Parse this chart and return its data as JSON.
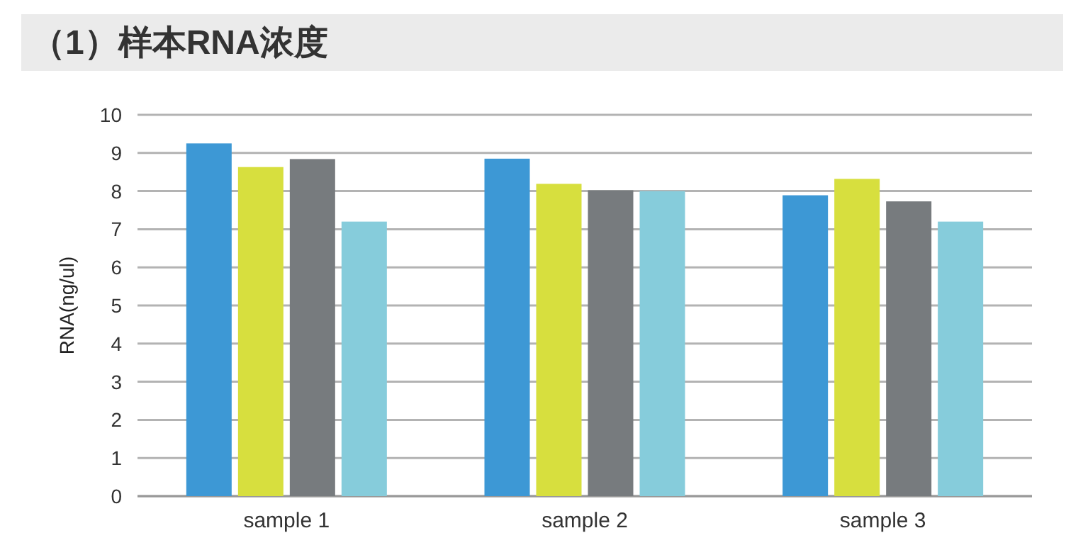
{
  "chart_data": {
    "type": "bar",
    "title": "（1）样本RNA浓度",
    "ylabel": "RNA(ng/ul)",
    "categories": [
      "sample 1",
      "sample 2",
      "sample 3"
    ],
    "series": [
      {
        "color": "#3d98d5",
        "values": [
          9.25,
          8.85,
          7.89
        ]
      },
      {
        "color": "#d7df3e",
        "values": [
          8.63,
          8.19,
          8.32
        ]
      },
      {
        "color": "#777b7e",
        "values": [
          8.84,
          8.02,
          7.73
        ]
      },
      {
        "color": "#86ccdb",
        "values": [
          7.2,
          8.0,
          7.2
        ]
      }
    ],
    "ylim": [
      0,
      10
    ],
    "yticks": [
      0,
      1,
      2,
      3,
      4,
      5,
      6,
      7,
      8,
      9,
      10
    ],
    "grid": "y"
  }
}
